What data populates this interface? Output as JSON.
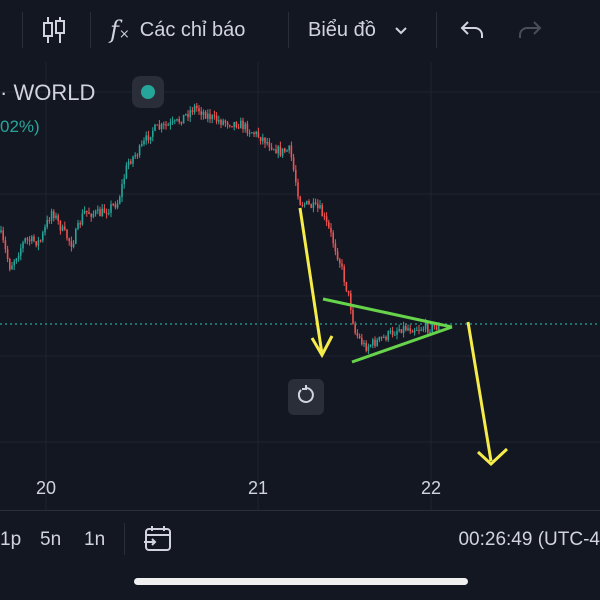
{
  "toolbar": {
    "indicators_label": "Các chỉ báo",
    "chart_label": "Biểu đồ"
  },
  "symbol": {
    "name": "· WORLD",
    "change": "02%)",
    "status_color": "#26a69a"
  },
  "chart": {
    "x_labels": [
      "20",
      "21",
      "22"
    ],
    "up_color": "#26a69a",
    "down_color": "#ef5350",
    "current_price_line_color": "#26a69a",
    "annotation_arrow_color": "#f5eb4a",
    "annotation_trendline_color": "#66d34a"
  },
  "bottom": {
    "intervals": [
      "1p",
      "5n",
      "1n"
    ],
    "time": "00:26:49 (UTC-4"
  },
  "icons": {
    "candles": "candlestick-icon",
    "fx": "function-icon",
    "undo": "undo-icon",
    "redo": "redo-icon",
    "reset": "reset-icon",
    "date": "calendar-range-icon"
  }
}
